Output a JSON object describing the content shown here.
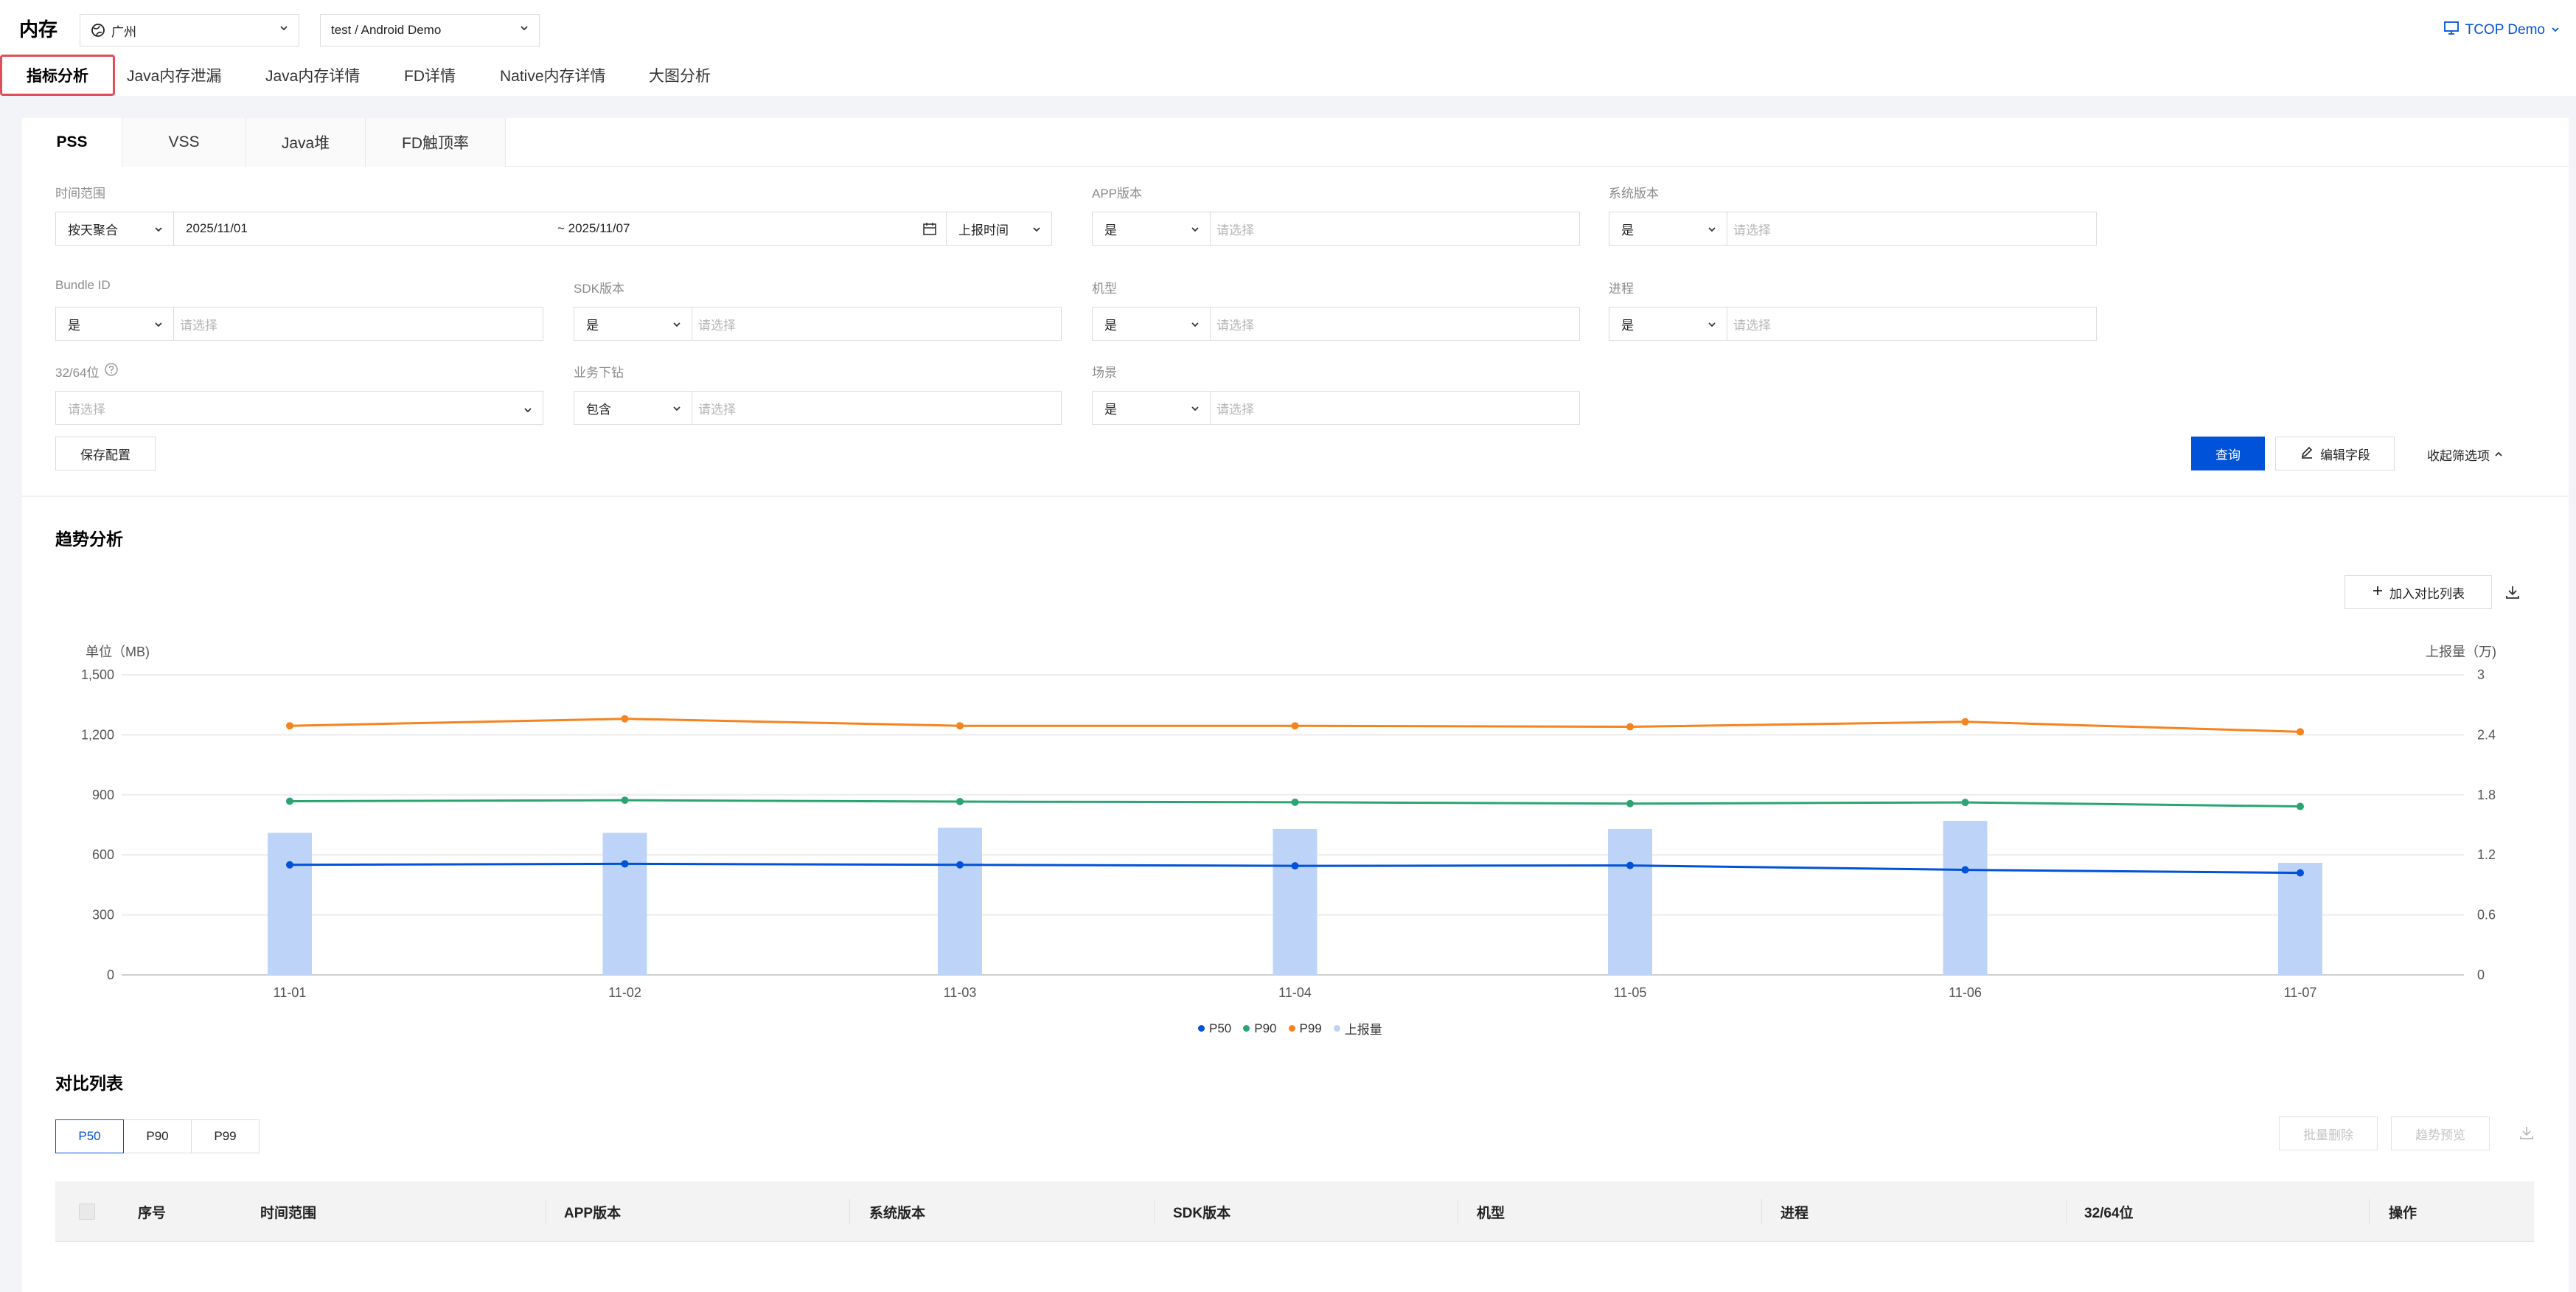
{
  "header": {
    "title": "内存",
    "region": "广州",
    "app": "test / Android Demo",
    "user": "TCOP Demo"
  },
  "main_tabs": [
    {
      "label": "指标分析",
      "active": true
    },
    {
      "label": "Java内存泄漏"
    },
    {
      "label": "Java内存详情"
    },
    {
      "label": "FD详情"
    },
    {
      "label": "Native内存详情"
    },
    {
      "label": "大图分析"
    }
  ],
  "sub_tabs": [
    {
      "label": "PSS",
      "active": true
    },
    {
      "label": "VSS"
    },
    {
      "label": "Java堆"
    },
    {
      "label": "FD触顶率"
    }
  ],
  "filters": {
    "time_range": {
      "label": "时间范围",
      "aggregate": "按天聚合",
      "start": "2025/11/01",
      "end": "~ 2025/11/07",
      "time_type": "上报时间"
    },
    "app_version": {
      "label": "APP版本",
      "op": "是",
      "placeholder": "请选择"
    },
    "system_version": {
      "label": "系统版本",
      "op": "是",
      "placeholder": "请选择"
    },
    "bundle_id": {
      "label": "Bundle ID",
      "op": "是",
      "placeholder": "请选择"
    },
    "sdk_version": {
      "label": "SDK版本",
      "op": "是",
      "placeholder": "请选择"
    },
    "model": {
      "label": "机型",
      "op": "是",
      "placeholder": "请选择"
    },
    "process": {
      "label": "进程",
      "op": "是",
      "placeholder": "请选择"
    },
    "arch": {
      "label": "32/64位",
      "placeholder": "请选择"
    },
    "business": {
      "label": "业务下钻",
      "op": "包含",
      "placeholder": "请选择"
    },
    "scene": {
      "label": "场景",
      "op": "是",
      "placeholder": "请选择"
    }
  },
  "actions": {
    "save_config": "保存配置",
    "query": "查询",
    "edit_fields": "编辑字段",
    "collapse": "收起筛选项"
  },
  "trend": {
    "title": "趋势分析",
    "add_compare": "加入对比列表"
  },
  "chart_data": {
    "type": "bar",
    "categories": [
      "11-01",
      "11-02",
      "11-03",
      "11-04",
      "11-05",
      "11-06",
      "11-07"
    ],
    "ylabel_left": "单位（MB)",
    "ylabel_right": "上报量（万)",
    "ylim_left": [
      0,
      1500
    ],
    "yticks_left": [
      "0",
      "300",
      "600",
      "900",
      "1,200",
      "1,500"
    ],
    "ylim_right": [
      0,
      3
    ],
    "yticks_right": [
      "0",
      "0.6",
      "1.2",
      "1.8",
      "2.4",
      "3"
    ],
    "series": [
      {
        "name": "P50",
        "type": "line",
        "axis": "left",
        "color": "#0052d9",
        "values": [
          550,
          555,
          550,
          545,
          547,
          525,
          510
        ]
      },
      {
        "name": "P90",
        "type": "line",
        "axis": "left",
        "color": "#2ba471",
        "values": [
          868,
          873,
          866,
          863,
          856,
          862,
          842
        ]
      },
      {
        "name": "P99",
        "type": "line",
        "axis": "left",
        "color": "#f5831f",
        "values": [
          1245,
          1280,
          1245,
          1245,
          1240,
          1265,
          1215
        ]
      },
      {
        "name": "上报量",
        "type": "bar",
        "axis": "right",
        "color": "#bdd3f8",
        "values": [
          1.42,
          1.42,
          1.47,
          1.46,
          1.46,
          1.54,
          1.12
        ]
      }
    ],
    "grid": true,
    "legend": "bottom-center"
  },
  "compare": {
    "title": "对比列表",
    "tabs": [
      "P50",
      "P90",
      "P99"
    ],
    "batch_delete": "批量删除",
    "trend_preview": "趋势预览",
    "columns": [
      "序号",
      "时间范围",
      "APP版本",
      "系统版本",
      "SDK版本",
      "机型",
      "进程",
      "32/64位",
      "操作"
    ]
  }
}
